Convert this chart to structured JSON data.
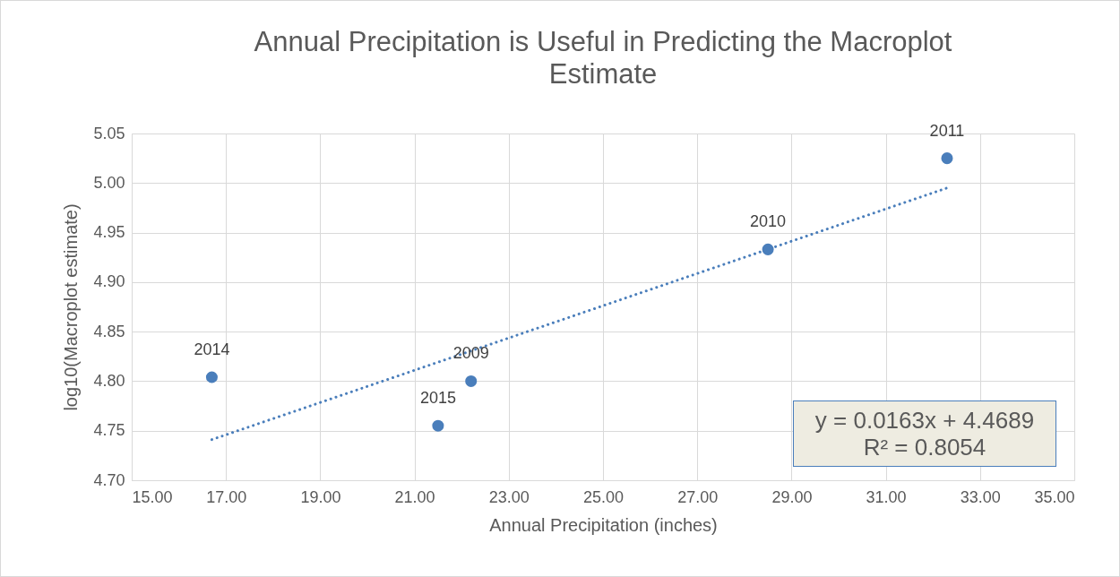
{
  "chart_data": {
    "type": "scatter",
    "title": "Annual Precipitation is Useful in Predicting the Macroplot Estimate",
    "xlabel": "Annual Precipitation (inches)",
    "ylabel": "log10(Macroplot estimate)",
    "series": [
      {
        "type": "scatter",
        "color": "#4a7ebb",
        "marker": "circle",
        "x": [
          16.7,
          21.5,
          22.2,
          28.5,
          32.3
        ],
        "values": [
          4.804,
          4.755,
          4.8,
          4.933,
          5.025
        ]
      },
      {
        "type": "line",
        "color": "#4a7ebb",
        "line_style": "dotted",
        "marker": "none",
        "x": [
          16.7,
          32.3
        ],
        "values": [
          4.741,
          4.995
        ]
      }
    ],
    "xlim": [
      15,
      35
    ],
    "xticks": [
      {
        "value": 15,
        "label": "15.00"
      },
      {
        "value": 17,
        "label": "17.00"
      },
      {
        "value": 19,
        "label": "19.00"
      },
      {
        "value": 21,
        "label": "21.00"
      },
      {
        "value": 23,
        "label": "23.00"
      },
      {
        "value": 25,
        "label": "25.00"
      },
      {
        "value": 27,
        "label": "27.00"
      },
      {
        "value": 29,
        "label": "29.00"
      },
      {
        "value": 31,
        "label": "31.00"
      },
      {
        "value": 33,
        "label": "33.00"
      },
      {
        "value": 35,
        "label": "35.00"
      }
    ],
    "ylim": [
      4.7,
      5.05
    ],
    "yticks": [
      {
        "value": 4.7,
        "label": "4.70"
      },
      {
        "value": 4.75,
        "label": "4.75"
      },
      {
        "value": 4.8,
        "label": "4.80"
      },
      {
        "value": 4.85,
        "label": "4.85"
      },
      {
        "value": 4.9,
        "label": "4.90"
      },
      {
        "value": 4.95,
        "label": "4.95"
      },
      {
        "value": 5,
        "label": "5.00"
      },
      {
        "value": 5.05,
        "label": "5.05"
      }
    ],
    "grid": true,
    "annotations": [
      {
        "text": "2014",
        "x": 16.7,
        "y": 4.804
      },
      {
        "text": "2015",
        "x": 21.5,
        "y": 4.755
      },
      {
        "text": "2009",
        "x": 22.2,
        "y": 4.8
      },
      {
        "text": "2010",
        "x": 28.5,
        "y": 4.933
      },
      {
        "text": "2011",
        "x": 32.3,
        "y": 5.025
      },
      "y = 0.0163x + 4.4689",
      "R² = 0.8054"
    ]
  }
}
